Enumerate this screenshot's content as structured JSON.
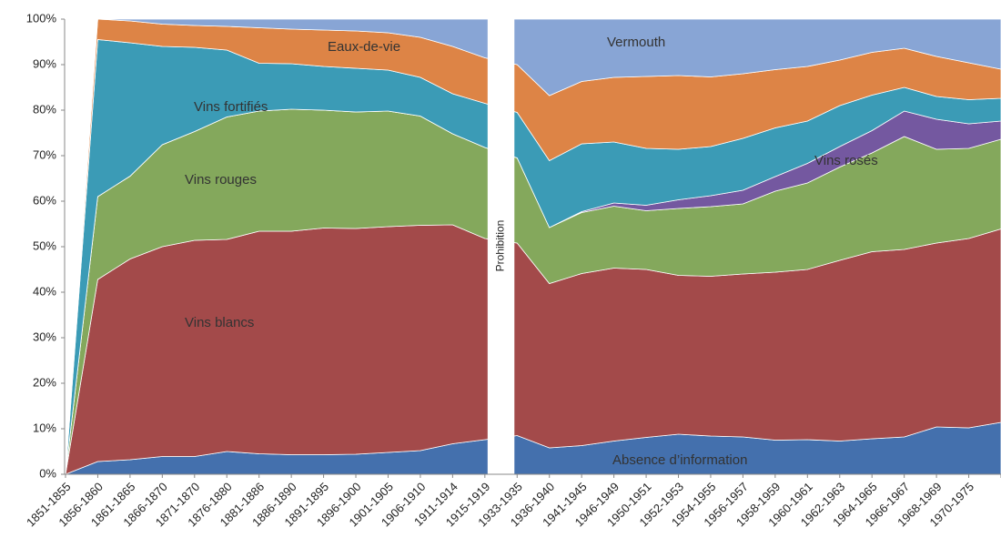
{
  "chart_data": {
    "type": "stacked_area",
    "categories": [
      "1851-1855",
      "1856-1860",
      "1861-1865",
      "1866-1870",
      "1871-1870",
      "1876-1880",
      "1881-1886",
      "1886-1890",
      "1891-1895",
      "1896-1900",
      "1901-1905",
      "1906-1910",
      "1911-1914",
      "1915-1919",
      "1933-1935",
      "1936-1940",
      "1941-1945",
      "1946-1949",
      "1950-1951",
      "1952-1953",
      "1954-1955",
      "1956-1957",
      "1958-1959",
      "1960-1961",
      "1962-1963",
      "1964-1965",
      "1966-1967",
      "1968-1969",
      "1970-1975",
      null
    ],
    "series": [
      {
        "name": "Absence d’information",
        "color": "#4470ad",
        "values": [
          0,
          2.8,
          3.2,
          3.9,
          3.9,
          5,
          4.5,
          4.3,
          4.3,
          4.4,
          4.8,
          5.2,
          6.7,
          7.6,
          8.5,
          5.8,
          6.3,
          7.3,
          8.1,
          8.8,
          8.4,
          8.2,
          7.5,
          7.6,
          7.3,
          7.8,
          8.2,
          10.4,
          10.2,
          11.4
        ]
      },
      {
        "name": "Vins blancs",
        "color": "#a34a4a",
        "values": [
          0,
          40,
          44.1,
          46.1,
          47.5,
          46.6,
          48.9,
          49.1,
          49.8,
          49.6,
          49.6,
          49.5,
          48.1,
          44.2,
          42.3,
          36.1,
          37.8,
          38,
          36.9,
          34.9,
          35.1,
          35.8,
          36.9,
          37.4,
          39.7,
          41.1,
          41.2,
          40.4,
          41.6,
          42.5
        ]
      },
      {
        "name": "Vins rouges",
        "color": "#84a85c",
        "values": [
          0,
          18.2,
          18.2,
          22.4,
          23.9,
          26.9,
          26.4,
          26.8,
          25.9,
          25.6,
          25.4,
          24,
          20,
          20,
          18.7,
          12.3,
          13.4,
          13.6,
          12.9,
          14.7,
          15.3,
          15.4,
          17.8,
          19,
          20.5,
          21.7,
          24.8,
          20.6,
          19.8,
          19.7
        ]
      },
      {
        "name": "Vins rosés",
        "color": "#7458a0",
        "values": [
          0,
          0,
          0,
          0,
          0,
          0,
          0,
          0,
          0,
          0,
          0,
          0,
          0,
          0,
          0,
          0,
          0.2,
          0.7,
          1.2,
          1.9,
          2.4,
          3,
          3.2,
          4.3,
          4.5,
          4.9,
          5.6,
          6.6,
          5.4,
          4
        ]
      },
      {
        "name": "Vins fortifiés",
        "color": "#3b9bb6",
        "values": [
          0,
          34.5,
          29.3,
          21.6,
          18.5,
          14.7,
          10.5,
          10,
          9.6,
          9.6,
          9,
          8.5,
          8.8,
          9.7,
          10,
          14.7,
          14.9,
          13.4,
          12.5,
          11.1,
          10.8,
          11.4,
          10.7,
          9.3,
          9,
          7.8,
          5.2,
          5,
          5.3,
          5
        ]
      },
      {
        "name": "Eaux-de-vie",
        "color": "#dd8446",
        "values": [
          0,
          4.5,
          4.8,
          4.9,
          4.8,
          5.2,
          7.8,
          7.6,
          8,
          8.2,
          8.2,
          8.8,
          10.4,
          10,
          10.5,
          14.3,
          13.7,
          14.2,
          15.8,
          16.2,
          15.3,
          14.2,
          12.8,
          12,
          10,
          9.4,
          8.6,
          8.8,
          8.1,
          6.4
        ]
      },
      {
        "name": "Vermouth",
        "color": "#88a5d5",
        "values": [
          0,
          0,
          0.4,
          1.1,
          1.4,
          1.6,
          1.9,
          2.2,
          2.4,
          2.6,
          3,
          4,
          6,
          8.5,
          10,
          16.8,
          13.7,
          12.8,
          12.6,
          12.4,
          12.7,
          12,
          11.1,
          10.4,
          9,
          7.3,
          6.4,
          8.2,
          9.6,
          11
        ]
      }
    ],
    "annotation": "Prohibition",
    "ylim": [
      0,
      100
    ],
    "yticks": [
      {
        "value": 0,
        "label": "0%"
      },
      {
        "value": 10,
        "label": "10%"
      },
      {
        "value": 20,
        "label": "20%"
      },
      {
        "value": 30,
        "label": "30%"
      },
      {
        "value": 40,
        "label": "40%"
      },
      {
        "value": 50,
        "label": "50%"
      },
      {
        "value": 60,
        "label": "60%"
      },
      {
        "value": 70,
        "label": "70%"
      },
      {
        "value": 80,
        "label": "80%"
      },
      {
        "value": 90,
        "label": "90%"
      },
      {
        "value": 100,
        "label": "100%"
      }
    ]
  }
}
